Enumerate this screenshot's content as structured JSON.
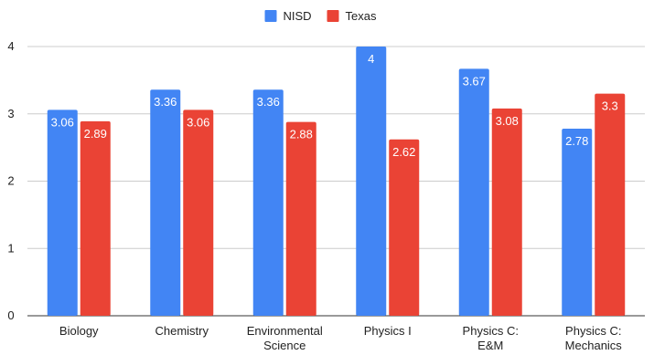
{
  "chart_data": {
    "type": "bar",
    "categories": [
      [
        "Biology"
      ],
      [
        "Chemistry"
      ],
      [
        "Environmental",
        "Science"
      ],
      [
        "Physics I"
      ],
      [
        "Physics C:",
        "E&M"
      ],
      [
        "Physics C:",
        "Mechanics"
      ]
    ],
    "series": [
      {
        "name": "NISD",
        "color": "#4285f4",
        "values": [
          3.06,
          3.36,
          3.36,
          4,
          3.67,
          2.78
        ]
      },
      {
        "name": "Texas",
        "color": "#ea4335",
        "values": [
          2.89,
          3.06,
          2.88,
          2.62,
          3.08,
          3.3
        ]
      }
    ],
    "ylim": [
      0,
      4
    ],
    "yticks": [
      0,
      1,
      2,
      3,
      4
    ],
    "grid": true,
    "legend_position": "top-center"
  }
}
